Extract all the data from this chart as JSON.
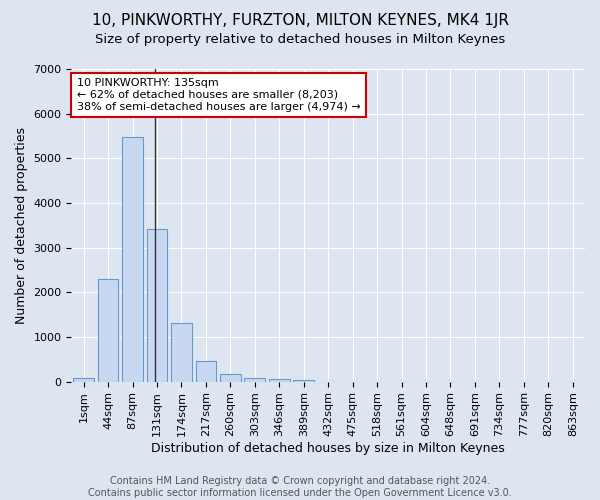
{
  "title": "10, PINKWORTHY, FURZTON, MILTON KEYNES, MK4 1JR",
  "subtitle": "Size of property relative to detached houses in Milton Keynes",
  "xlabel": "Distribution of detached houses by size in Milton Keynes",
  "ylabel": "Number of detached properties",
  "footer_line1": "Contains HM Land Registry data © Crown copyright and database right 2024.",
  "footer_line2": "Contains public sector information licensed under the Open Government Licence v3.0.",
  "bar_labels": [
    "1sqm",
    "44sqm",
    "87sqm",
    "131sqm",
    "174sqm",
    "217sqm",
    "260sqm",
    "303sqm",
    "346sqm",
    "389sqm",
    "432sqm",
    "475sqm",
    "518sqm",
    "561sqm",
    "604sqm",
    "648sqm",
    "691sqm",
    "734sqm",
    "777sqm",
    "820sqm",
    "863sqm"
  ],
  "bar_values": [
    70,
    2300,
    5480,
    3420,
    1310,
    470,
    160,
    85,
    50,
    30,
    0,
    0,
    0,
    0,
    0,
    0,
    0,
    0,
    0,
    0,
    0
  ],
  "bar_color": "#c8d8f0",
  "bar_edge_color": "#6699cc",
  "annotation_line1": "10 PINKWORTHY: 135sqm",
  "annotation_line2": "← 62% of detached houses are smaller (8,203)",
  "annotation_line3": "38% of semi-detached houses are larger (4,974) →",
  "annotation_box_color": "#ffffff",
  "annotation_box_edge_color": "#cc0000",
  "vline_color": "#333333",
  "vline_x": 2.93,
  "ylim": [
    0,
    7000
  ],
  "background_color": "#dde5f0",
  "plot_bg_color": "#dde5f0",
  "grid_color": "#ffffff",
  "title_fontsize": 11,
  "subtitle_fontsize": 9.5,
  "axis_label_fontsize": 9,
  "tick_fontsize": 8,
  "annotation_fontsize": 8,
  "footer_fontsize": 7
}
